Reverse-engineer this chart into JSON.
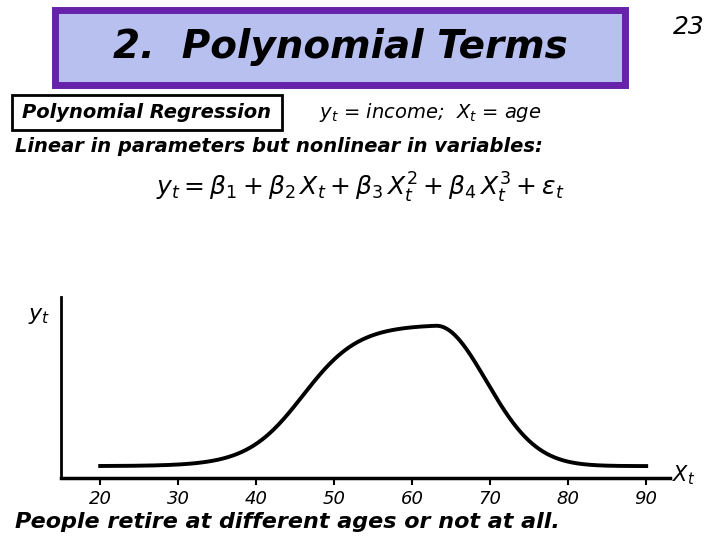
{
  "title": "2.  Polynomial Terms",
  "slide_number": "23",
  "title_bg_color": "#b8c0f0",
  "title_border_color": "#6622aa",
  "box2_border_color": "#000000",
  "bg_color": "#ffffff",
  "curve_color": "#000000",
  "axis_color": "#000000",
  "text_color": "#000000",
  "xticks": [
    20,
    30,
    40,
    50,
    60,
    70,
    80,
    90
  ]
}
